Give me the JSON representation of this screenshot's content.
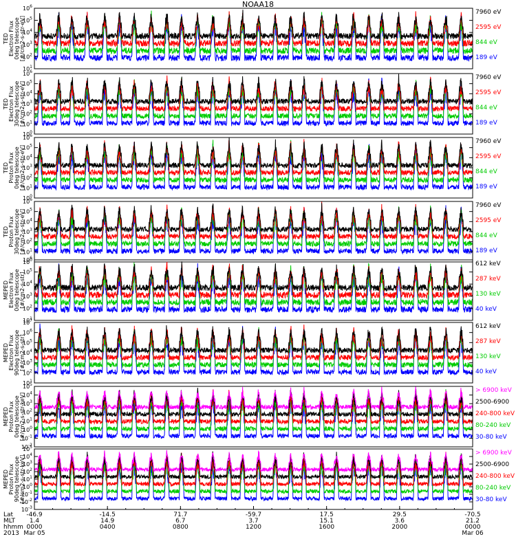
{
  "chart_data": {
    "type": "line",
    "title": "NOAA18",
    "x_axis": {
      "rows": [
        {
          "label": "Lat",
          "ticks": [
            "-46.9",
            "-14.5",
            "71.7",
            "-59.7",
            "17.5",
            "29.5",
            "-70.5"
          ]
        },
        {
          "label": "MLT",
          "ticks": [
            "1.4",
            "14.9",
            "6.7",
            "3.7",
            "15.1",
            "3.6",
            "21.2"
          ]
        },
        {
          "label": "hhmm",
          "ticks": [
            "0000",
            "0400",
            "0800",
            "1200",
            "1600",
            "2000",
            "0000"
          ]
        },
        {
          "label": "2013",
          "ticks": [
            "Mar 05",
            "",
            "",
            "",
            "",
            "",
            "Mar 06"
          ]
        }
      ],
      "range_hours": [
        0,
        24
      ]
    },
    "panels": [
      {
        "ylabel": [
          "TED",
          "Electron Flux",
          "0deg telescope",
          "[#/cm2-s-str-eV]"
        ],
        "ylog": true,
        "ylim_exp": [
          1,
          6
        ],
        "yticks": [
          "10^1",
          "10^2",
          "10^3",
          "10^4",
          "10^5",
          "10^6"
        ],
        "series": [
          {
            "name": "7960 eV",
            "color": "#000000"
          },
          {
            "name": "2595 eV",
            "color": "#ff0000"
          },
          {
            "name": "844 eV",
            "color": "#00cc00"
          },
          {
            "name": "189 eV",
            "color": "#0000ff"
          }
        ]
      },
      {
        "ylabel": [
          "TED",
          "Electron Flux",
          "30deg telescope",
          "[#/cm2-s-str-eV]"
        ],
        "ylog": true,
        "ylim_exp": [
          0,
          6
        ],
        "yticks": [
          "10^0",
          "10^1",
          "10^2",
          "10^3",
          "10^4",
          "10^5",
          "10^6"
        ],
        "series": [
          {
            "name": "7960 eV",
            "color": "#000000"
          },
          {
            "name": "2595 eV",
            "color": "#ff0000"
          },
          {
            "name": "844 eV",
            "color": "#00cc00"
          },
          {
            "name": "189 eV",
            "color": "#0000ff"
          }
        ]
      },
      {
        "ylabel": [
          "TED",
          "Proton Flux",
          "0deg telescope",
          "[#/cm2-s-str-eV]"
        ],
        "ylog": true,
        "ylim_exp": [
          0,
          6
        ],
        "yticks": [
          "10^0",
          "10^1",
          "10^2",
          "10^3",
          "10^4",
          "10^5",
          "10^6"
        ],
        "series": [
          {
            "name": "7960 eV",
            "color": "#000000"
          },
          {
            "name": "2595 eV",
            "color": "#ff0000"
          },
          {
            "name": "844 eV",
            "color": "#00cc00"
          },
          {
            "name": "189 eV",
            "color": "#0000ff"
          }
        ]
      },
      {
        "ylabel": [
          "TED",
          "Proton Flux",
          "30deg telescope",
          "[#/cm2-s-str-eV]"
        ],
        "ylog": true,
        "ylim_exp": [
          0,
          6
        ],
        "yticks": [
          "10^0",
          "10^1",
          "10^2",
          "10^3",
          "10^4",
          "10^5",
          "10^6"
        ],
        "series": [
          {
            "name": "7960 eV",
            "color": "#000000"
          },
          {
            "name": "2595 eV",
            "color": "#ff0000"
          },
          {
            "name": "844 eV",
            "color": "#00cc00"
          },
          {
            "name": "189 eV",
            "color": "#0000ff"
          }
        ]
      },
      {
        "ylabel": [
          "MEPED",
          "Electron Flux",
          "0deg telescope",
          "[#/cm2-s-str]"
        ],
        "ylog": true,
        "ylim_exp": [
          1,
          6
        ],
        "yticks": [
          "10^1",
          "10^2",
          "10^3",
          "10^4",
          "10^5",
          "10^6"
        ],
        "series": [
          {
            "name": "612 keV",
            "color": "#000000"
          },
          {
            "name": "287 keV",
            "color": "#ff0000"
          },
          {
            "name": "130 keV",
            "color": "#00cc00"
          },
          {
            "name": "40 keV",
            "color": "#0000ff"
          }
        ]
      },
      {
        "ylabel": [
          "MEPED",
          "Electron Flux",
          "90deg telescope",
          "[#/cm2-s-str]"
        ],
        "ylog": true,
        "ylim_exp": [
          1,
          7
        ],
        "yticks": [
          "10^1",
          "10^2",
          "10^3",
          "10^4",
          "10^5",
          "10^6",
          "10^7"
        ],
        "series": [
          {
            "name": "612 keV",
            "color": "#000000"
          },
          {
            "name": "287 keV",
            "color": "#ff0000"
          },
          {
            "name": "130 keV",
            "color": "#00cc00"
          },
          {
            "name": "40 keV",
            "color": "#0000ff"
          }
        ]
      },
      {
        "ylabel": [
          "MEPED",
          "Proton Flux",
          "0deg telescope",
          "[#/cm2-s-str-keV]"
        ],
        "ylog": true,
        "ylim_exp": [
          -2,
          5
        ],
        "yticks": [
          "10^-2",
          "10^-1",
          "10^0",
          "10^1",
          "10^2",
          "10^3",
          "10^4",
          "10^5"
        ],
        "series": [
          {
            "name": "> 6900 keV",
            "color": "#ff00ff"
          },
          {
            "name": "2500-6900",
            "color": "#000000"
          },
          {
            "name": "240-800 keV",
            "color": "#ff0000"
          },
          {
            "name": "80-240 keV",
            "color": "#00cc00"
          },
          {
            "name": "30-80 keV",
            "color": "#0000ff"
          }
        ]
      },
      {
        "ylabel": [
          "MEPED",
          "Proton Flux",
          "90deg telescope",
          "[#/cm2-s-str-keV]"
        ],
        "ylog": true,
        "ylim_exp": [
          -3,
          5
        ],
        "yticks": [
          "10^-3",
          "10^-2",
          "10^-1",
          "10^0",
          "10^1",
          "10^2",
          "10^3",
          "10^4",
          "10^5"
        ],
        "series": [
          {
            "name": "> 6900 keV",
            "color": "#ff00ff"
          },
          {
            "name": "2500-6900",
            "color": "#000000"
          },
          {
            "name": "240-800 keV",
            "color": "#ff0000"
          },
          {
            "name": "80-240 keV",
            "color": "#00cc00"
          },
          {
            "name": "30-80 keV",
            "color": "#0000ff"
          }
        ]
      }
    ]
  }
}
